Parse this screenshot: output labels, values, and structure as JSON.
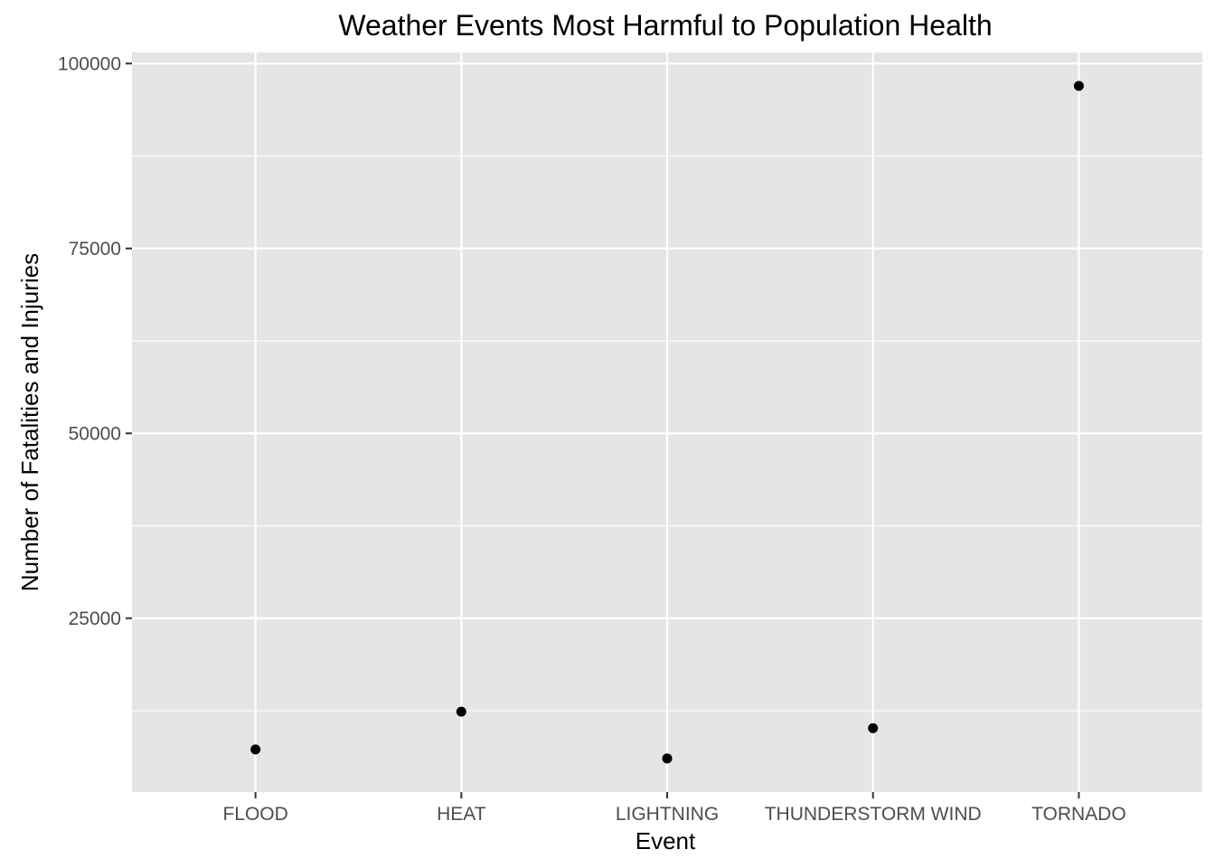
{
  "chart_data": {
    "type": "scatter",
    "title": "Weather Events Most Harmful to Population Health",
    "xlabel": "Event",
    "ylabel": "Number of Fatalities and Injuries",
    "categories": [
      "FLOOD",
      "HEAT",
      "LIGHTNING",
      "THUNDERSTORM WIND",
      "TORNADO"
    ],
    "values": [
      7259,
      12362,
      6046,
      10129,
      96979
    ],
    "yticks": [
      25000,
      50000,
      75000,
      100000
    ],
    "ytick_labels": [
      "25000",
      "50000",
      "75000",
      "100000"
    ],
    "ylim": [
      1500,
      101500
    ],
    "grid": true,
    "legend": "none",
    "colors": {
      "panel": "#e5e5e5",
      "grid": "#ffffff",
      "point": "#000000",
      "tick_text": "#4d4d4d",
      "tick_mark": "#333333"
    }
  }
}
